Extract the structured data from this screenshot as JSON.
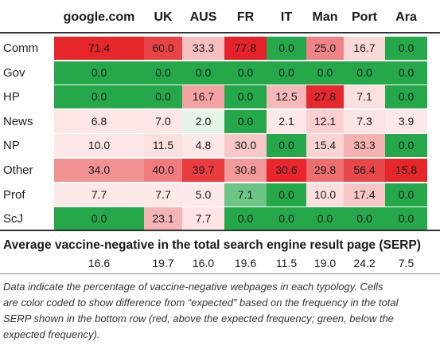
{
  "table": {
    "columns": [
      "google.com",
      "UK",
      "AUS",
      "FR",
      "IT",
      "Man",
      "Port",
      "Ara"
    ],
    "rows": [
      {
        "label": "Comm",
        "values": [
          "71.4",
          "60.0",
          "33.3",
          "77.8",
          "0.0",
          "25.0",
          "16.7",
          "0.0"
        ],
        "colors": [
          "#e6262b",
          "#e84245",
          "#f6c0c1",
          "#e5222a",
          "#25a84a",
          "#f08486",
          "#fad8d8",
          "#25a84a"
        ]
      },
      {
        "label": "Gov",
        "values": [
          "0.0",
          "0.0",
          "0.0",
          "0.0",
          "0.0",
          "0.0",
          "0.0",
          "0.0"
        ],
        "colors": [
          "#25a84a",
          "#25a84a",
          "#25a84a",
          "#25a84a",
          "#25a84a",
          "#25a84a",
          "#25a84a",
          "#25a84a"
        ]
      },
      {
        "label": "HP",
        "values": [
          "0.0",
          "0.0",
          "16.7",
          "0.0",
          "12.5",
          "27.8",
          "7.1",
          "0.0"
        ],
        "colors": [
          "#25a84a",
          "#25a84a",
          "#f4a3a4",
          "#25a84a",
          "#f6b8b9",
          "#e5292f",
          "#fbe0e0",
          "#25a84a"
        ]
      },
      {
        "label": "News",
        "values": [
          "6.8",
          "7.0",
          "2.0",
          "0.0",
          "2.1",
          "12.1",
          "7.3",
          "3.9"
        ],
        "colors": [
          "#fde6e6",
          "#fde6e6",
          "#e5f3e8",
          "#25a84a",
          "#fde8e8",
          "#fbcfd0",
          "#fde4e4",
          "#fde9e9"
        ]
      },
      {
        "label": "NP",
        "values": [
          "10.0",
          "11.5",
          "4.8",
          "30.0",
          "0.0",
          "15.4",
          "33.3",
          "0.0"
        ],
        "colors": [
          "#fde6e6",
          "#fce0e0",
          "#fde8e8",
          "#f8c7c8",
          "#25a84a",
          "#fad4d5",
          "#f6b2b3",
          "#25a84a"
        ]
      },
      {
        "label": "Other",
        "values": [
          "34.0",
          "40.0",
          "39.7",
          "30.8",
          "30.6",
          "29.8",
          "56.4",
          "15.8"
        ],
        "colors": [
          "#f29293",
          "#f07c7e",
          "#ea3b3e",
          "#f29a9b",
          "#e9262c",
          "#ee6e70",
          "#e8474a",
          "#e5272c"
        ]
      },
      {
        "label": "Prof",
        "values": [
          "7.7",
          "7.7",
          "5.0",
          "7.1",
          "0.0",
          "10.0",
          "17.4",
          "0.0"
        ],
        "colors": [
          "#fde8e8",
          "#fde8e8",
          "#fde9e9",
          "#6cc585",
          "#25a84a",
          "#fce0e0",
          "#f8c6c7",
          "#25a84a"
        ]
      },
      {
        "label": "ScJ",
        "values": [
          "0.0",
          "23.1",
          "7.7",
          "0.0",
          "0.0",
          "0.0",
          "0.0",
          "0.0"
        ],
        "colors": [
          "#25a84a",
          "#f5b5b6",
          "#fde3e3",
          "#25a84a",
          "#25a84a",
          "#25a84a",
          "#25a84a",
          "#25a84a"
        ]
      }
    ]
  },
  "average": {
    "title": "Average vaccine-negative in the total search engine result page (SERP)",
    "values": [
      "16.6",
      "19.7",
      "16.0",
      "19.6",
      "11.5",
      "19.0",
      "24.2",
      "7.5"
    ]
  },
  "note": {
    "lines": [
      "Data indicate the percentage of vaccine-negative webpages in each typology. Cells",
      "are color coded to show difference from “expected” based on the frequency in the total",
      "SERP shown in the bottom row (red, above the expected frequency; green, below the",
      "expected frequency)."
    ]
  }
}
